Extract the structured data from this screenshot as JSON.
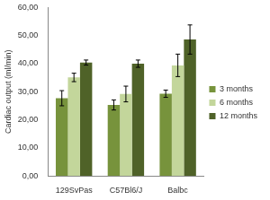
{
  "chart_data": {
    "type": "bar",
    "y_label": "Cardiac output (ml/min)",
    "categories": [
      "129SvPas",
      "C57Bl6/J",
      "Balbc"
    ],
    "series": [
      {
        "name": "3 months",
        "color": "#77933c",
        "values": [
          27.7,
          25.3,
          29.3
        ],
        "errors": [
          2.7,
          1.8,
          1.3
        ]
      },
      {
        "name": "6 months",
        "color": "#c3d69b",
        "values": [
          35.1,
          29.2,
          39.4
        ],
        "errors": [
          1.5,
          2.8,
          4.0
        ]
      },
      {
        "name": "12 months",
        "color": "#4f6228",
        "values": [
          40.4,
          40.0,
          48.6
        ],
        "errors": [
          0.9,
          1.3,
          5.2
        ]
      }
    ],
    "ylim": [
      0,
      60
    ],
    "yticks": [
      {
        "value": 0,
        "label": "0,00"
      },
      {
        "value": 10,
        "label": "10,00"
      },
      {
        "value": 20,
        "label": "20,00"
      },
      {
        "value": 30,
        "label": "30,00"
      },
      {
        "value": 40,
        "label": "40,00"
      },
      {
        "value": 50,
        "label": "50,00"
      },
      {
        "value": 60,
        "label": "60,00"
      }
    ],
    "grid": false,
    "legend": "right"
  }
}
